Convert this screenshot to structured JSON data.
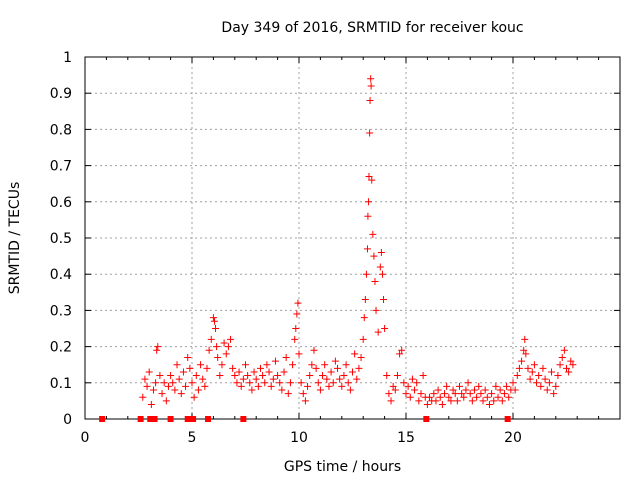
{
  "chart_data": {
    "type": "scatter",
    "title": "Day 349 of 2016, SRMTID for receiver kouc",
    "xlabel": "GPS time / hours",
    "ylabel": "SRMTID / TECUs",
    "xlim": [
      0,
      25
    ],
    "ylim": [
      0,
      1
    ],
    "xticks": [
      0,
      5,
      10,
      15,
      20
    ],
    "xtick_labels": [
      "0",
      "5",
      "10",
      "15",
      "20"
    ],
    "yticks": [
      0,
      0.1,
      0.2,
      0.3,
      0.4,
      0.5,
      0.6,
      0.7,
      0.8,
      0.9,
      1
    ],
    "ytick_labels": [
      "0",
      "0.1",
      "0.2",
      "0.3",
      "0.4",
      "0.5",
      "0.6",
      "0.7",
      "0.8",
      "0.9",
      "1"
    ],
    "grid": true,
    "marker": "+",
    "series_color": "#ff0000",
    "zero_squares_x": [
      0.8,
      2.6,
      3.05,
      3.2,
      3.25,
      4.0,
      4.8,
      4.95,
      5.05,
      5.75,
      7.4,
      15.95,
      19.75
    ],
    "points": [
      [
        2.7,
        0.06
      ],
      [
        2.8,
        0.11
      ],
      [
        2.9,
        0.09
      ],
      [
        3.0,
        0.13
      ],
      [
        3.1,
        0.04
      ],
      [
        3.2,
        0.08
      ],
      [
        3.3,
        0.1
      ],
      [
        3.35,
        0.19
      ],
      [
        3.4,
        0.2
      ],
      [
        3.5,
        0.12
      ],
      [
        3.6,
        0.07
      ],
      [
        3.7,
        0.1
      ],
      [
        3.8,
        0.05
      ],
      [
        3.9,
        0.09
      ],
      [
        4.0,
        0.12
      ],
      [
        4.1,
        0.1
      ],
      [
        4.2,
        0.08
      ],
      [
        4.3,
        0.15
      ],
      [
        4.4,
        0.11
      ],
      [
        4.5,
        0.07
      ],
      [
        4.6,
        0.13
      ],
      [
        4.7,
        0.09
      ],
      [
        4.8,
        0.17
      ],
      [
        4.9,
        0.14
      ],
      [
        5.0,
        0.1
      ],
      [
        5.1,
        0.06
      ],
      [
        5.2,
        0.12
      ],
      [
        5.3,
        0.08
      ],
      [
        5.4,
        0.15
      ],
      [
        5.5,
        0.11
      ],
      [
        5.6,
        0.09
      ],
      [
        5.7,
        0.14
      ],
      [
        5.8,
        0.19
      ],
      [
        5.9,
        0.22
      ],
      [
        6.0,
        0.28
      ],
      [
        6.05,
        0.27
      ],
      [
        6.1,
        0.25
      ],
      [
        6.15,
        0.2
      ],
      [
        6.2,
        0.17
      ],
      [
        6.3,
        0.12
      ],
      [
        6.4,
        0.15
      ],
      [
        6.5,
        0.21
      ],
      [
        6.6,
        0.18
      ],
      [
        6.7,
        0.2
      ],
      [
        6.8,
        0.22
      ],
      [
        6.9,
        0.14
      ],
      [
        7.0,
        0.12
      ],
      [
        7.1,
        0.1
      ],
      [
        7.2,
        0.13
      ],
      [
        7.3,
        0.09
      ],
      [
        7.4,
        0.11
      ],
      [
        7.5,
        0.15
      ],
      [
        7.6,
        0.12
      ],
      [
        7.7,
        0.1
      ],
      [
        7.8,
        0.08
      ],
      [
        7.9,
        0.13
      ],
      [
        8.0,
        0.11
      ],
      [
        8.1,
        0.09
      ],
      [
        8.2,
        0.14
      ],
      [
        8.3,
        0.12
      ],
      [
        8.4,
        0.1
      ],
      [
        8.5,
        0.15
      ],
      [
        8.6,
        0.13
      ],
      [
        8.7,
        0.09
      ],
      [
        8.8,
        0.11
      ],
      [
        8.9,
        0.16
      ],
      [
        9.0,
        0.12
      ],
      [
        9.1,
        0.1
      ],
      [
        9.2,
        0.08
      ],
      [
        9.3,
        0.13
      ],
      [
        9.4,
        0.17
      ],
      [
        9.5,
        0.07
      ],
      [
        9.6,
        0.1
      ],
      [
        9.7,
        0.15
      ],
      [
        9.8,
        0.22
      ],
      [
        9.85,
        0.25
      ],
      [
        9.9,
        0.29
      ],
      [
        9.95,
        0.32
      ],
      [
        10.0,
        0.18
      ],
      [
        10.1,
        0.1
      ],
      [
        10.2,
        0.07
      ],
      [
        10.3,
        0.05
      ],
      [
        10.4,
        0.09
      ],
      [
        10.5,
        0.12
      ],
      [
        10.6,
        0.15
      ],
      [
        10.7,
        0.19
      ],
      [
        10.8,
        0.14
      ],
      [
        10.9,
        0.1
      ],
      [
        11.0,
        0.08
      ],
      [
        11.1,
        0.12
      ],
      [
        11.2,
        0.15
      ],
      [
        11.3,
        0.11
      ],
      [
        11.4,
        0.09
      ],
      [
        11.5,
        0.13
      ],
      [
        11.6,
        0.1
      ],
      [
        11.7,
        0.16
      ],
      [
        11.8,
        0.14
      ],
      [
        11.9,
        0.11
      ],
      [
        12.0,
        0.09
      ],
      [
        12.1,
        0.12
      ],
      [
        12.2,
        0.15
      ],
      [
        12.3,
        0.1
      ],
      [
        12.4,
        0.08
      ],
      [
        12.5,
        0.13
      ],
      [
        12.6,
        0.18
      ],
      [
        12.7,
        0.11
      ],
      [
        12.8,
        0.14
      ],
      [
        12.9,
        0.17
      ],
      [
        13.0,
        0.22
      ],
      [
        13.05,
        0.28
      ],
      [
        13.1,
        0.33
      ],
      [
        13.15,
        0.4
      ],
      [
        13.2,
        0.47
      ],
      [
        13.22,
        0.56
      ],
      [
        13.25,
        0.6
      ],
      [
        13.27,
        0.67
      ],
      [
        13.3,
        0.79
      ],
      [
        13.32,
        0.88
      ],
      [
        13.35,
        0.94
      ],
      [
        13.37,
        0.92
      ],
      [
        13.4,
        0.66
      ],
      [
        13.45,
        0.51
      ],
      [
        13.5,
        0.45
      ],
      [
        13.55,
        0.38
      ],
      [
        13.6,
        0.3
      ],
      [
        13.7,
        0.24
      ],
      [
        13.8,
        0.42
      ],
      [
        13.85,
        0.46
      ],
      [
        13.9,
        0.4
      ],
      [
        13.95,
        0.33
      ],
      [
        14.0,
        0.25
      ],
      [
        14.1,
        0.12
      ],
      [
        14.2,
        0.07
      ],
      [
        14.3,
        0.05
      ],
      [
        14.4,
        0.09
      ],
      [
        14.5,
        0.08
      ],
      [
        14.6,
        0.12
      ],
      [
        14.7,
        0.18
      ],
      [
        14.8,
        0.19
      ],
      [
        14.9,
        0.1
      ],
      [
        15.0,
        0.07
      ],
      [
        15.1,
        0.09
      ],
      [
        15.2,
        0.06
      ],
      [
        15.3,
        0.11
      ],
      [
        15.4,
        0.08
      ],
      [
        15.5,
        0.1
      ],
      [
        15.6,
        0.05
      ],
      [
        15.7,
        0.07
      ],
      [
        15.8,
        0.12
      ],
      [
        15.9,
        0.06
      ],
      [
        16.0,
        0.04
      ],
      [
        16.1,
        0.06
      ],
      [
        16.2,
        0.05
      ],
      [
        16.3,
        0.07
      ],
      [
        16.4,
        0.05
      ],
      [
        16.5,
        0.08
      ],
      [
        16.6,
        0.06
      ],
      [
        16.7,
        0.04
      ],
      [
        16.8,
        0.07
      ],
      [
        16.9,
        0.09
      ],
      [
        17.0,
        0.06
      ],
      [
        17.1,
        0.05
      ],
      [
        17.2,
        0.08
      ],
      [
        17.3,
        0.07
      ],
      [
        17.4,
        0.05
      ],
      [
        17.5,
        0.09
      ],
      [
        17.6,
        0.07
      ],
      [
        17.7,
        0.06
      ],
      [
        17.8,
        0.08
      ],
      [
        17.9,
        0.1
      ],
      [
        18.0,
        0.07
      ],
      [
        18.1,
        0.05
      ],
      [
        18.2,
        0.08
      ],
      [
        18.3,
        0.06
      ],
      [
        18.4,
        0.09
      ],
      [
        18.5,
        0.07
      ],
      [
        18.6,
        0.05
      ],
      [
        18.7,
        0.08
      ],
      [
        18.8,
        0.06
      ],
      [
        18.9,
        0.04
      ],
      [
        19.0,
        0.07
      ],
      [
        19.1,
        0.05
      ],
      [
        19.2,
        0.09
      ],
      [
        19.3,
        0.06
      ],
      [
        19.4,
        0.08
      ],
      [
        19.5,
        0.05
      ],
      [
        19.6,
        0.07
      ],
      [
        19.7,
        0.09
      ],
      [
        19.8,
        0.06
      ],
      [
        19.9,
        0.08
      ],
      [
        20.0,
        0.1
      ],
      [
        20.1,
        0.08
      ],
      [
        20.2,
        0.12
      ],
      [
        20.3,
        0.14
      ],
      [
        20.4,
        0.16
      ],
      [
        20.5,
        0.19
      ],
      [
        20.55,
        0.22
      ],
      [
        20.6,
        0.18
      ],
      [
        20.7,
        0.14
      ],
      [
        20.8,
        0.11
      ],
      [
        20.9,
        0.13
      ],
      [
        21.0,
        0.15
      ],
      [
        21.1,
        0.1
      ],
      [
        21.2,
        0.12
      ],
      [
        21.3,
        0.09
      ],
      [
        21.4,
        0.14
      ],
      [
        21.5,
        0.11
      ],
      [
        21.6,
        0.08
      ],
      [
        21.7,
        0.1
      ],
      [
        21.8,
        0.13
      ],
      [
        21.9,
        0.07
      ],
      [
        22.0,
        0.09
      ],
      [
        22.1,
        0.12
      ],
      [
        22.2,
        0.15
      ],
      [
        22.3,
        0.17
      ],
      [
        22.4,
        0.19
      ],
      [
        22.5,
        0.14
      ],
      [
        22.6,
        0.13
      ],
      [
        22.7,
        0.16
      ],
      [
        22.8,
        0.15
      ]
    ]
  }
}
